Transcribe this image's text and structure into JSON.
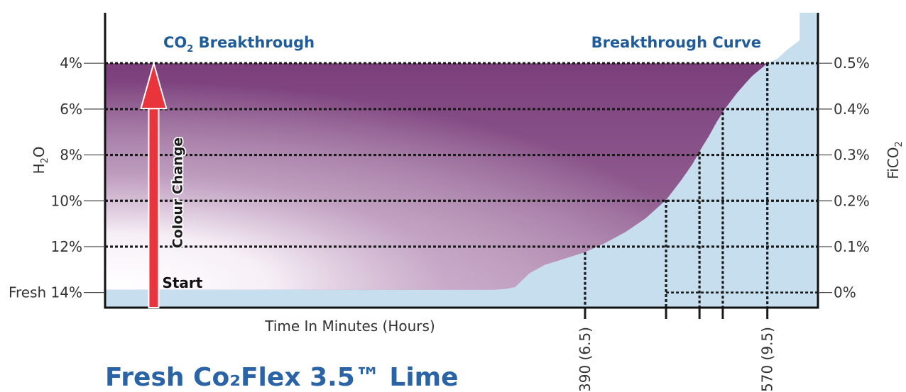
{
  "chart_data": {
    "type": "area",
    "title_left": {
      "text": "CO",
      "sub": "2",
      "rest": " Breakthrough"
    },
    "title_right": "Breakthrough Curve",
    "xlabel": "Time In Minutes (Hours)",
    "ylabel_left": {
      "text": "H",
      "sub": "2",
      "rest": "O"
    },
    "ylabel_right": {
      "text": "FiCO",
      "sub": "2"
    },
    "left_ticks": [
      {
        "label": "4%",
        "level": 5
      },
      {
        "label": "6%",
        "level": 4
      },
      {
        "label": "8%",
        "level": 3
      },
      {
        "label": "10%",
        "level": 2
      },
      {
        "label": "12%",
        "level": 1
      },
      {
        "label": "Fresh 14%",
        "level": 0
      }
    ],
    "right_ticks": [
      {
        "label": "0.5%",
        "level": 5
      },
      {
        "label": "0.4%",
        "level": 4
      },
      {
        "label": "0.3%",
        "level": 3
      },
      {
        "label": "0.2%",
        "level": 2
      },
      {
        "label": "0.1%",
        "level": 1
      },
      {
        "label": "0%",
        "level": 0
      }
    ],
    "x_ticks": [
      {
        "x": 390,
        "label": "390 (6.5)"
      },
      {
        "x": 470,
        "label": ""
      },
      {
        "x": 503,
        "label": ""
      },
      {
        "x": 526,
        "label": ""
      },
      {
        "x": 570,
        "label": "570 (9.5)"
      }
    ],
    "xlim": [
      -84,
      620
    ],
    "ylim": [
      -0.33,
      6.1
    ],
    "series": [
      {
        "x": [
          -84,
          300,
          312,
          321,
          335,
          350,
          370,
          390,
          410,
          430,
          450,
          470,
          485,
          496,
          505,
          512,
          520,
          528,
          540,
          550,
          555,
          562,
          566,
          570,
          580,
          590,
          600,
          602,
          614,
          620
        ],
        "y": [
          0.06,
          0.06,
          0.08,
          0.12,
          0.42,
          0.6,
          0.74,
          0.88,
          1.08,
          1.32,
          1.62,
          2.02,
          2.45,
          2.8,
          3.15,
          3.4,
          3.72,
          4.0,
          4.35,
          4.6,
          4.72,
          4.85,
          4.92,
          5.0,
          5.1,
          5.3,
          5.5,
          6.1,
          6.1,
          6.1
        ]
      }
    ],
    "arrow": {
      "label_top": "Colour Change",
      "label_bottom": "Start",
      "x": -36,
      "from": -0.33,
      "to": 5
    }
  },
  "footer": {
    "title": "Fresh Co₂Flex 3.5™ Lime"
  }
}
